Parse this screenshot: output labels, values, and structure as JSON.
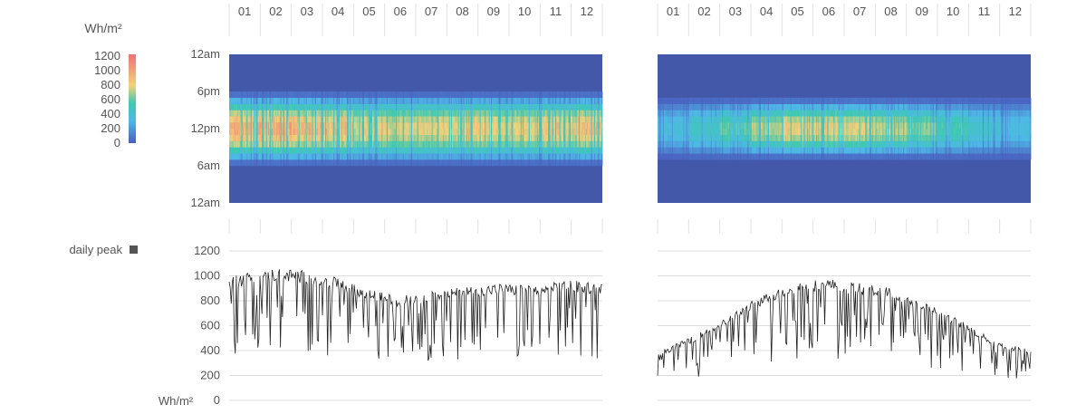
{
  "legend": {
    "unit_top": "Wh/m²",
    "scale_ticks": [
      "1200",
      "1000",
      "800",
      "600",
      "400",
      "200",
      "0"
    ],
    "daily_peak_label": "daily peak",
    "unit_bottom": "Wh/m²",
    "colors": {
      "low": "#4a5fbf",
      "mid1": "#4fb8e8",
      "mid2": "#3ec9b0",
      "mid3": "#f2d27a",
      "high": "#f07078",
      "background_heat": "#4358a8",
      "peak_line": "#222222",
      "peak_swatch": "#555555",
      "grid": "#dddddd"
    }
  },
  "chart_data": [
    {
      "type": "heatmap",
      "name": "left-heatmap",
      "x_ticks": [
        "01",
        "02",
        "03",
        "04",
        "05",
        "06",
        "07",
        "08",
        "09",
        "10",
        "11",
        "12"
      ],
      "y_ticks": [
        "12am",
        "6pm",
        "12pm",
        "6am",
        "12am"
      ],
      "value_range": [
        0,
        1200
      ],
      "hours_start": 6,
      "hours_end": 18,
      "peak_month_profile": [
        1050,
        1080,
        1060,
        1000,
        880,
        820,
        860,
        900,
        920,
        900,
        960,
        1000
      ]
    },
    {
      "type": "heatmap",
      "name": "right-heatmap",
      "x_ticks": [
        "01",
        "02",
        "03",
        "04",
        "05",
        "06",
        "07",
        "08",
        "09",
        "10",
        "11",
        "12"
      ],
      "value_range": [
        0,
        1200
      ],
      "hours_start": 7,
      "hours_end": 17,
      "peak_month_profile": [
        350,
        480,
        620,
        780,
        900,
        920,
        880,
        820,
        700,
        560,
        420,
        340
      ]
    },
    {
      "type": "line",
      "name": "left-daily-peak",
      "y_ticks": [
        "1200",
        "1000",
        "800",
        "600",
        "400",
        "200",
        "0"
      ],
      "ylim": [
        0,
        1200
      ],
      "series_name": "daily peak",
      "x": [
        "01",
        "02",
        "03",
        "04",
        "05",
        "06",
        "07",
        "08",
        "09",
        "10",
        "11",
        "12"
      ],
      "values": [
        970,
        1040,
        1030,
        980,
        880,
        820,
        860,
        900,
        920,
        900,
        950,
        920
      ]
    },
    {
      "type": "line",
      "name": "right-daily-peak",
      "ylim": [
        0,
        1200
      ],
      "series_name": "daily peak",
      "x": [
        "01",
        "02",
        "03",
        "04",
        "05",
        "06",
        "07",
        "08",
        "09",
        "10",
        "11",
        "12"
      ],
      "values": [
        380,
        500,
        650,
        820,
        930,
        960,
        920,
        880,
        760,
        620,
        460,
        400
      ]
    }
  ]
}
